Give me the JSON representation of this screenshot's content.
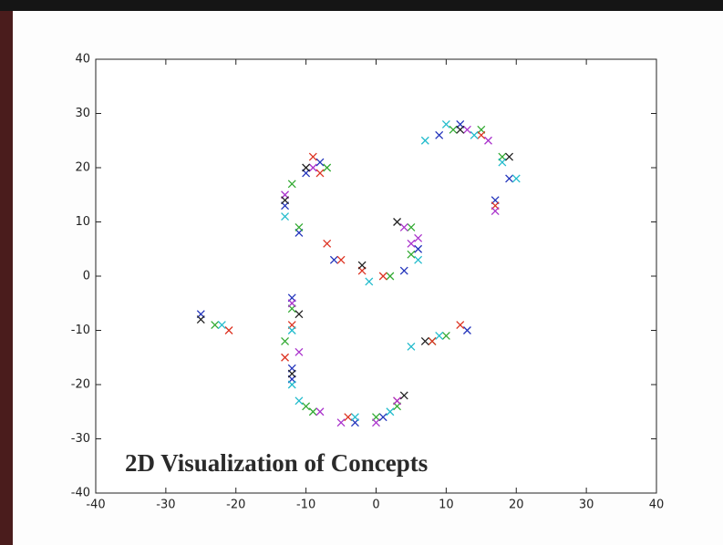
{
  "chart_data": {
    "type": "scatter",
    "annotation": "2D Visualization of Concepts",
    "xlim": [
      -40,
      40
    ],
    "ylim": [
      -40,
      40
    ],
    "xticks": [
      -40,
      -30,
      -20,
      -10,
      0,
      10,
      20,
      30,
      40
    ],
    "yticks": [
      -40,
      -30,
      -20,
      -10,
      0,
      10,
      20,
      30,
      40
    ],
    "marker": "x",
    "series": [
      {
        "color": "#2233bb",
        "x": [
          -25,
          -12,
          -10,
          -13,
          -11,
          -12,
          -3,
          1,
          4,
          6,
          9,
          12,
          17,
          19,
          -8,
          13,
          -12,
          -6
        ],
        "values": [
          -7,
          -4,
          19,
          13,
          8,
          -17,
          -27,
          -26,
          1,
          5,
          26,
          28,
          14,
          18,
          21,
          -10,
          -19,
          3
        ]
      },
      {
        "color": "#33aa33",
        "x": [
          -23,
          -13,
          -9,
          -11,
          -12,
          0,
          3,
          5,
          8,
          11,
          15,
          18,
          -7,
          10,
          -10,
          2,
          -12,
          5
        ],
        "values": [
          -9,
          -12,
          -25,
          9,
          17,
          -26,
          -24,
          9,
          -12,
          27,
          27,
          22,
          20,
          -11,
          -24,
          0,
          -6,
          4
        ]
      },
      {
        "color": "#dd3322",
        "x": [
          -21,
          -12,
          -8,
          -7,
          -5,
          -2,
          1,
          8,
          15,
          17,
          -13,
          -4,
          12,
          -9,
          3
        ],
        "values": [
          -10,
          -9,
          19,
          6,
          3,
          1,
          0,
          -12,
          26,
          13,
          -15,
          -26,
          -9,
          22,
          -23
        ]
      },
      {
        "color": "#22bbcc",
        "x": [
          -22,
          -12,
          -11,
          -3,
          2,
          6,
          7,
          10,
          14,
          18,
          20,
          -1,
          5,
          9,
          -13,
          -12
        ],
        "values": [
          -9,
          -20,
          -23,
          -26,
          -25,
          3,
          25,
          28,
          26,
          21,
          18,
          -1,
          -13,
          -11,
          11,
          -10
        ]
      },
      {
        "color": "#aa33cc",
        "x": [
          -12,
          -11,
          -8,
          -5,
          4,
          5,
          3,
          13,
          16,
          -9,
          0,
          -13,
          6,
          17
        ],
        "values": [
          -5,
          -14,
          -25,
          -27,
          9,
          6,
          -23,
          27,
          25,
          20,
          -27,
          15,
          7,
          12
        ]
      },
      {
        "color": "#222222",
        "x": [
          -25,
          -11,
          -12,
          -10,
          -2,
          3,
          4,
          12,
          19,
          -13,
          7
        ],
        "values": [
          -8,
          -7,
          -18,
          20,
          2,
          10,
          -22,
          27,
          22,
          14,
          -12
        ]
      }
    ]
  }
}
